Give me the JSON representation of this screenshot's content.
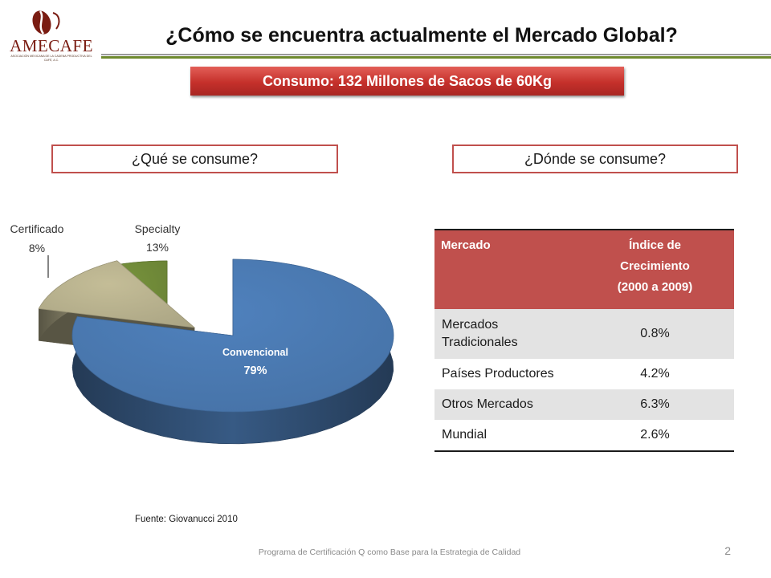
{
  "logo": {
    "name": "AMECAFE",
    "subtitle": "ASOCIACIÓN MEXICANA DE LA CADENA PRODUCTIVA DEL CAFÉ, A.C."
  },
  "title": "¿Cómo se encuentra actualmente el Mercado Global?",
  "consumo_banner": "Consumo: 132 Millones de Sacos de 60Kg",
  "questions": {
    "que": "¿Qué se consume?",
    "donde": "¿Dónde se consume?"
  },
  "chart_data": [
    {
      "type": "pie",
      "title": "",
      "slices": [
        {
          "label": "Convencional",
          "value": 79,
          "value_label": "79%",
          "color": "#4f81bd"
        },
        {
          "label": "Specialty",
          "value": 13,
          "value_label": "13%",
          "color": "#c4bd97"
        },
        {
          "label": "Certificado",
          "value": 8,
          "value_label": "8%",
          "color": "#77933c"
        }
      ],
      "style": "3d-exploded"
    },
    {
      "type": "table",
      "columns": [
        "Mercado",
        "Índice de Crecimiento (2000 a 2009)"
      ],
      "header": {
        "mercado": "Mercado",
        "indice_line1": "Índice de",
        "indice_line2": "Crecimiento",
        "indice_line3": "(2000 a 2009)"
      },
      "rows": [
        {
          "mercado": "Mercados Tradicionales",
          "indice": "0.8%"
        },
        {
          "mercado": "Países Productores",
          "indice": "4.2%"
        },
        {
          "mercado": "Otros Mercados",
          "indice": "6.3%"
        },
        {
          "mercado": "Mundial",
          "indice": "2.6%"
        }
      ]
    }
  ],
  "source": "Fuente: Giovanucci 2010",
  "footer": "Programa de Certificación Q como Base para la Estrategia de Calidad",
  "page_number": "2",
  "colors": {
    "accent_red": "#c0504d",
    "accent_green": "#6e8a2e",
    "convencional": "#4f81bd",
    "specialty": "#c4bd97",
    "certificado": "#77933c"
  }
}
